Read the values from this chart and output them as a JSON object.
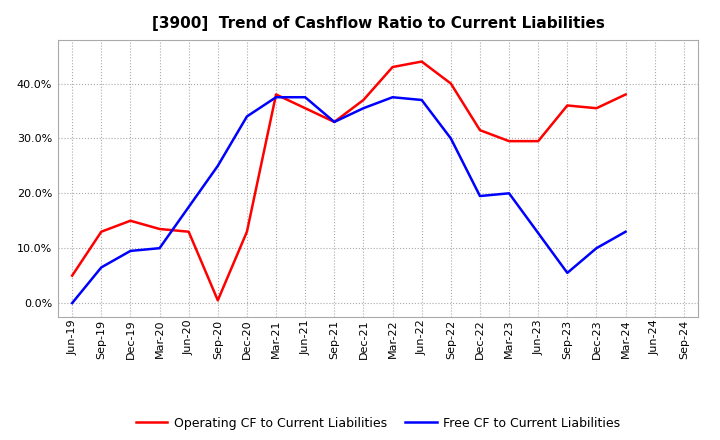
{
  "title": "[3900]  Trend of Cashflow Ratio to Current Liabilities",
  "x_labels": [
    "Jun-19",
    "Sep-19",
    "Dec-19",
    "Mar-20",
    "Jun-20",
    "Sep-20",
    "Dec-20",
    "Mar-21",
    "Jun-21",
    "Sep-21",
    "Dec-21",
    "Mar-22",
    "Jun-22",
    "Sep-22",
    "Dec-22",
    "Mar-23",
    "Jun-23",
    "Sep-23",
    "Dec-23",
    "Mar-24",
    "Jun-24",
    "Sep-24"
  ],
  "op_x": [
    0,
    1,
    2,
    3,
    4,
    5,
    6,
    7,
    8,
    9,
    10,
    11,
    12,
    13,
    14,
    15,
    16,
    17,
    18,
    19
  ],
  "op_y": [
    0.05,
    0.13,
    0.15,
    0.135,
    0.13,
    0.005,
    0.13,
    0.38,
    0.355,
    0.33,
    0.37,
    0.43,
    0.44,
    0.4,
    0.315,
    0.295,
    0.295,
    0.36,
    0.355,
    0.38
  ],
  "free_x": [
    0,
    1,
    2,
    3,
    5,
    6,
    7,
    8,
    9,
    10,
    11,
    12,
    13,
    14,
    15,
    17,
    18,
    19
  ],
  "free_y": [
    0.0,
    0.065,
    0.095,
    0.1,
    0.25,
    0.34,
    0.375,
    0.375,
    0.33,
    0.355,
    0.375,
    0.37,
    0.3,
    0.195,
    0.2,
    0.055,
    0.1,
    0.13
  ],
  "operating_color": "#FF0000",
  "free_color": "#0000FF",
  "background_color": "#FFFFFF",
  "plot_bg_color": "#FFFFFF",
  "grid_color": "#AAAAAA",
  "ylim": [
    -0.025,
    0.48
  ],
  "yticks": [
    0.0,
    0.1,
    0.2,
    0.3,
    0.4
  ],
  "legend_operating": "Operating CF to Current Liabilities",
  "legend_free": "Free CF to Current Liabilities",
  "title_fontsize": 11,
  "tick_fontsize": 8,
  "legend_fontsize": 9
}
